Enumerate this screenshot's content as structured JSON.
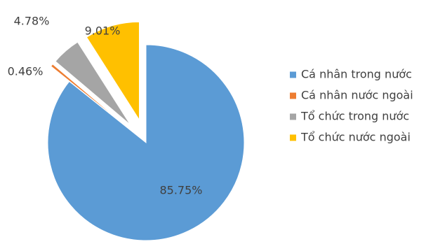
{
  "chart_data": {
    "type": "pie",
    "title": "",
    "slices": [
      {
        "label": "Cá nhân trong nước",
        "value": 85.75,
        "display": "85.75%",
        "color": "#5B9BD5"
      },
      {
        "label": "Cá nhân nước ngoài",
        "value": 0.46,
        "display": "0.46%",
        "color": "#ED7D31"
      },
      {
        "label": "Tổ chức trong nước",
        "value": 4.78,
        "display": "4.78%",
        "color": "#A5A5A5"
      },
      {
        "label": "Tổ chức nước ngoài",
        "value": 9.01,
        "display": "9.01%",
        "color": "#FFC000"
      }
    ],
    "exploded": true,
    "legend_position": "right"
  }
}
